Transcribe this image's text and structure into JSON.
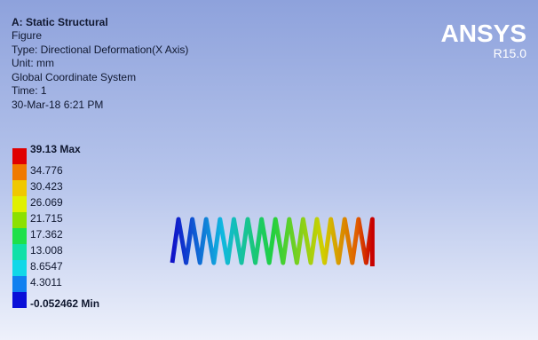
{
  "header": {
    "title": "A: Static Structural",
    "lines": [
      "Figure",
      "Type: Directional Deformation(X Axis)",
      "Unit: mm",
      "Global Coordinate System",
      "Time: 1",
      "30-Mar-18 6:21 PM"
    ]
  },
  "logo": {
    "name": "ANSYS",
    "version": "R15.0"
  },
  "legend": {
    "items": [
      {
        "label": "39.13 Max",
        "color": "#e00000"
      },
      {
        "label": "34.776",
        "color": "#f07a00"
      },
      {
        "label": "30.423",
        "color": "#f0c800"
      },
      {
        "label": "26.069",
        "color": "#e0f000"
      },
      {
        "label": "21.715",
        "color": "#8ce000"
      },
      {
        "label": "17.362",
        "color": "#1ee04a"
      },
      {
        "label": "13.008",
        "color": "#10e0a8"
      },
      {
        "label": "8.6547",
        "color": "#10d8e8"
      },
      {
        "label": "4.3011",
        "color": "#1080f0"
      },
      {
        "label": "-0.052462 Min",
        "color": "#0a10d8"
      }
    ]
  }
}
